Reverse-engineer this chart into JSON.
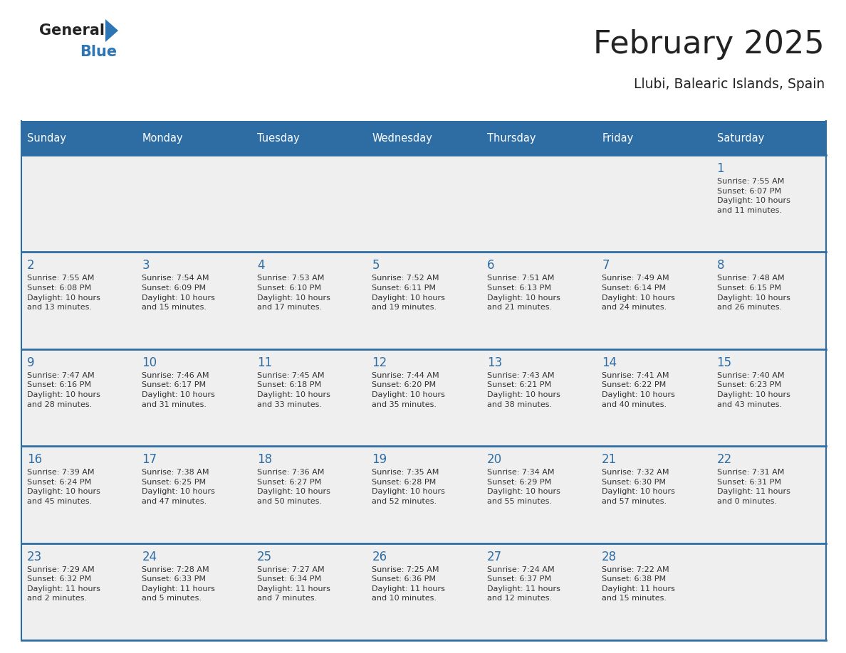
{
  "title": "February 2025",
  "subtitle": "Llubi, Balearic Islands, Spain",
  "days_of_week": [
    "Sunday",
    "Monday",
    "Tuesday",
    "Wednesday",
    "Thursday",
    "Friday",
    "Saturday"
  ],
  "header_bg": "#2E6DA4",
  "header_text": "#FFFFFF",
  "cell_bg": "#EFEFEF",
  "cell_border_color": "#2E6DA4",
  "day_number_color": "#2E6DA4",
  "text_color": "#333333",
  "title_color": "#222222",
  "logo_general_color": "#222222",
  "logo_blue_color": "#2E75B6",
  "weeks": [
    {
      "row": 0,
      "days": [
        {
          "date": null,
          "info": null
        },
        {
          "date": null,
          "info": null
        },
        {
          "date": null,
          "info": null
        },
        {
          "date": null,
          "info": null
        },
        {
          "date": null,
          "info": null
        },
        {
          "date": null,
          "info": null
        },
        {
          "date": 1,
          "info": "Sunrise: 7:55 AM\nSunset: 6:07 PM\nDaylight: 10 hours\nand 11 minutes."
        }
      ]
    },
    {
      "row": 1,
      "days": [
        {
          "date": 2,
          "info": "Sunrise: 7:55 AM\nSunset: 6:08 PM\nDaylight: 10 hours\nand 13 minutes."
        },
        {
          "date": 3,
          "info": "Sunrise: 7:54 AM\nSunset: 6:09 PM\nDaylight: 10 hours\nand 15 minutes."
        },
        {
          "date": 4,
          "info": "Sunrise: 7:53 AM\nSunset: 6:10 PM\nDaylight: 10 hours\nand 17 minutes."
        },
        {
          "date": 5,
          "info": "Sunrise: 7:52 AM\nSunset: 6:11 PM\nDaylight: 10 hours\nand 19 minutes."
        },
        {
          "date": 6,
          "info": "Sunrise: 7:51 AM\nSunset: 6:13 PM\nDaylight: 10 hours\nand 21 minutes."
        },
        {
          "date": 7,
          "info": "Sunrise: 7:49 AM\nSunset: 6:14 PM\nDaylight: 10 hours\nand 24 minutes."
        },
        {
          "date": 8,
          "info": "Sunrise: 7:48 AM\nSunset: 6:15 PM\nDaylight: 10 hours\nand 26 minutes."
        }
      ]
    },
    {
      "row": 2,
      "days": [
        {
          "date": 9,
          "info": "Sunrise: 7:47 AM\nSunset: 6:16 PM\nDaylight: 10 hours\nand 28 minutes."
        },
        {
          "date": 10,
          "info": "Sunrise: 7:46 AM\nSunset: 6:17 PM\nDaylight: 10 hours\nand 31 minutes."
        },
        {
          "date": 11,
          "info": "Sunrise: 7:45 AM\nSunset: 6:18 PM\nDaylight: 10 hours\nand 33 minutes."
        },
        {
          "date": 12,
          "info": "Sunrise: 7:44 AM\nSunset: 6:20 PM\nDaylight: 10 hours\nand 35 minutes."
        },
        {
          "date": 13,
          "info": "Sunrise: 7:43 AM\nSunset: 6:21 PM\nDaylight: 10 hours\nand 38 minutes."
        },
        {
          "date": 14,
          "info": "Sunrise: 7:41 AM\nSunset: 6:22 PM\nDaylight: 10 hours\nand 40 minutes."
        },
        {
          "date": 15,
          "info": "Sunrise: 7:40 AM\nSunset: 6:23 PM\nDaylight: 10 hours\nand 43 minutes."
        }
      ]
    },
    {
      "row": 3,
      "days": [
        {
          "date": 16,
          "info": "Sunrise: 7:39 AM\nSunset: 6:24 PM\nDaylight: 10 hours\nand 45 minutes."
        },
        {
          "date": 17,
          "info": "Sunrise: 7:38 AM\nSunset: 6:25 PM\nDaylight: 10 hours\nand 47 minutes."
        },
        {
          "date": 18,
          "info": "Sunrise: 7:36 AM\nSunset: 6:27 PM\nDaylight: 10 hours\nand 50 minutes."
        },
        {
          "date": 19,
          "info": "Sunrise: 7:35 AM\nSunset: 6:28 PM\nDaylight: 10 hours\nand 52 minutes."
        },
        {
          "date": 20,
          "info": "Sunrise: 7:34 AM\nSunset: 6:29 PM\nDaylight: 10 hours\nand 55 minutes."
        },
        {
          "date": 21,
          "info": "Sunrise: 7:32 AM\nSunset: 6:30 PM\nDaylight: 10 hours\nand 57 minutes."
        },
        {
          "date": 22,
          "info": "Sunrise: 7:31 AM\nSunset: 6:31 PM\nDaylight: 11 hours\nand 0 minutes."
        }
      ]
    },
    {
      "row": 4,
      "days": [
        {
          "date": 23,
          "info": "Sunrise: 7:29 AM\nSunset: 6:32 PM\nDaylight: 11 hours\nand 2 minutes."
        },
        {
          "date": 24,
          "info": "Sunrise: 7:28 AM\nSunset: 6:33 PM\nDaylight: 11 hours\nand 5 minutes."
        },
        {
          "date": 25,
          "info": "Sunrise: 7:27 AM\nSunset: 6:34 PM\nDaylight: 11 hours\nand 7 minutes."
        },
        {
          "date": 26,
          "info": "Sunrise: 7:25 AM\nSunset: 6:36 PM\nDaylight: 11 hours\nand 10 minutes."
        },
        {
          "date": 27,
          "info": "Sunrise: 7:24 AM\nSunset: 6:37 PM\nDaylight: 11 hours\nand 12 minutes."
        },
        {
          "date": 28,
          "info": "Sunrise: 7:22 AM\nSunset: 6:38 PM\nDaylight: 11 hours\nand 15 minutes."
        },
        {
          "date": null,
          "info": null
        }
      ]
    }
  ]
}
